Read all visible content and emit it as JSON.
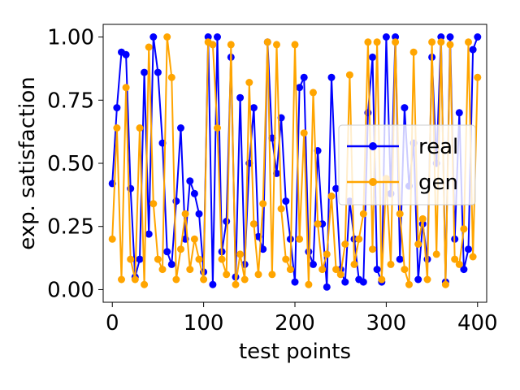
{
  "chart_data": {
    "type": "line",
    "title": "",
    "xlabel": "test points",
    "ylabel": "exp. satisfaction",
    "xlim": [
      -10,
      410
    ],
    "ylim": [
      -0.05,
      1.05
    ],
    "xticks": [
      0,
      100,
      200,
      300,
      400
    ],
    "xtick_labels": [
      "0",
      "100",
      "200",
      "300",
      "400"
    ],
    "yticks": [
      0.0,
      0.25,
      0.5,
      0.75,
      1.0
    ],
    "ytick_labels": [
      "0.00",
      "0.25",
      "0.50",
      "0.75",
      "1.00"
    ],
    "grid": false,
    "legend_position": "center-right",
    "x": [
      0,
      5,
      10,
      15,
      20,
      25,
      30,
      35,
      40,
      45,
      50,
      55,
      60,
      65,
      70,
      75,
      80,
      85,
      90,
      95,
      100,
      105,
      110,
      115,
      120,
      125,
      130,
      135,
      140,
      145,
      150,
      155,
      160,
      165,
      170,
      175,
      180,
      185,
      190,
      195,
      200,
      205,
      210,
      215,
      220,
      225,
      230,
      235,
      240,
      245,
      250,
      255,
      260,
      265,
      270,
      275,
      280,
      285,
      290,
      295,
      300,
      305,
      310,
      315,
      320,
      325,
      330,
      335,
      340,
      345,
      350,
      355,
      360,
      365,
      370,
      375,
      380,
      385,
      390,
      395,
      400
    ],
    "series": [
      {
        "name": "real",
        "color": "#0000ff",
        "marker": "circle",
        "values": [
          0.42,
          0.72,
          0.94,
          0.93,
          0.4,
          0.05,
          0.12,
          0.86,
          0.22,
          1.0,
          0.86,
          0.58,
          0.15,
          0.1,
          0.35,
          0.64,
          0.2,
          0.43,
          0.38,
          0.3,
          0.07,
          1.0,
          0.02,
          1.0,
          0.15,
          0.27,
          0.92,
          0.05,
          0.76,
          0.1,
          0.5,
          0.72,
          0.21,
          0.16,
          0.98,
          0.6,
          0.46,
          0.68,
          0.35,
          0.2,
          0.03,
          0.8,
          0.84,
          0.15,
          0.1,
          0.55,
          0.26,
          0.01,
          0.84,
          0.4,
          0.08,
          0.03,
          0.35,
          0.2,
          0.04,
          0.03,
          0.7,
          0.92,
          0.08,
          0.03,
          1.0,
          0.38,
          1.0,
          0.12,
          0.72,
          0.41,
          0.58,
          0.04,
          0.26,
          0.12,
          0.92,
          0.5,
          1.0,
          0.03,
          1.0,
          0.2,
          0.7,
          0.08,
          0.16,
          0.95,
          1.0
        ]
      },
      {
        "name": "gen",
        "color": "#ffa500",
        "marker": "circle",
        "values": [
          0.2,
          0.64,
          0.04,
          0.8,
          0.12,
          0.04,
          0.64,
          0.02,
          0.96,
          0.34,
          0.12,
          0.08,
          1.0,
          0.84,
          0.04,
          0.16,
          0.3,
          0.08,
          0.2,
          0.12,
          0.04,
          0.98,
          0.97,
          0.64,
          0.12,
          0.06,
          0.97,
          0.02,
          0.14,
          0.04,
          0.82,
          0.26,
          0.06,
          0.34,
          0.98,
          0.06,
          0.97,
          0.32,
          0.12,
          0.08,
          0.97,
          0.2,
          0.62,
          0.02,
          0.78,
          0.26,
          0.08,
          0.14,
          0.37,
          0.08,
          0.06,
          0.18,
          0.85,
          0.1,
          0.2,
          0.3,
          0.98,
          0.16,
          0.98,
          0.04,
          0.44,
          0.1,
          0.98,
          0.3,
          0.08,
          0.02,
          0.94,
          0.18,
          0.28,
          0.04,
          0.98,
          0.14,
          0.98,
          0.02,
          0.97,
          0.12,
          0.1,
          0.24,
          0.98,
          0.13,
          0.84
        ]
      }
    ]
  }
}
